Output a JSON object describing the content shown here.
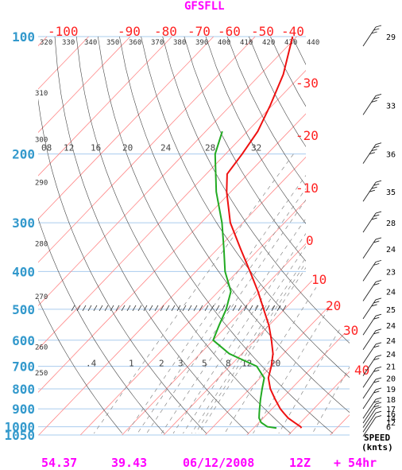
{
  "title": "GFSFLL",
  "footer": {
    "lat": "54.37",
    "lon": "39.43",
    "date": "06/12/2008",
    "hour": "12Z",
    "forecast": "+ 54hr"
  },
  "colors": {
    "temperature": "#ee1111",
    "dewpoint": "#22aa22",
    "isobar": "#aaccee",
    "isotherm": "#ff8888",
    "dry_adiabat": "#444444",
    "pressure_label": "#3399cc",
    "title": "#ff00ff"
  },
  "speed_header": [
    "SPEED",
    "(knts)"
  ],
  "chart_data": {
    "type": "skew-t",
    "pressure_levels": [
      100,
      200,
      300,
      400,
      500,
      600,
      700,
      800,
      900,
      1000,
      1050
    ],
    "pressure_labels": [
      "100",
      "200",
      "300",
      "400",
      "500",
      "600",
      "700",
      "800",
      "900",
      "1000",
      "1050"
    ],
    "isotherm_labels": [
      "-100",
      "-90",
      "-80",
      "-70",
      "-60",
      "-50",
      "-40",
      "-30",
      "-20",
      "-10",
      "0",
      "10",
      "20",
      "30",
      "40"
    ],
    "isotherm_values": [
      -100,
      -90,
      -80,
      -70,
      -60,
      -50,
      -40,
      -30,
      -20,
      -10,
      0,
      10,
      20,
      30,
      40
    ],
    "theta_labels_top": [
      "320",
      "330",
      "340",
      "350",
      "360",
      "370",
      "380",
      "390",
      "400",
      "410",
      "420",
      "430",
      "440"
    ],
    "theta_values_top": [
      320,
      330,
      340,
      350,
      360,
      370,
      380,
      390,
      400,
      410,
      420,
      430,
      440
    ],
    "theta_labels_left": [
      {
        "text": "310",
        "p": 143
      },
      {
        "text": "300",
        "p": 188
      },
      {
        "text": "290",
        "p": 242
      },
      {
        "text": "280",
        "p": 348
      },
      {
        "text": "270",
        "p": 475
      },
      {
        "text": "260",
        "p": 640
      },
      {
        "text": "250",
        "p": 745
      }
    ],
    "mixing_ratio_top_labels": [
      "08",
      "12",
      "16",
      "20",
      "24",
      "28",
      "32"
    ],
    "mixing_ratio_top_values": [
      0.8,
      1.2,
      1.6,
      2.0,
      2.4,
      2.8,
      3.2
    ],
    "mixing_ratio_bottom_labels": [
      ".4",
      "1",
      "2",
      "3",
      "5",
      "8",
      "12",
      "20"
    ],
    "mixing_ratio_bottom_values": [
      0.4,
      1,
      2,
      3,
      5,
      8,
      12,
      20
    ],
    "temperature_profile": [
      {
        "p": 1008,
        "t": 21.5
      },
      {
        "p": 1000,
        "t": 21.0
      },
      {
        "p": 975,
        "t": 18.5
      },
      {
        "p": 950,
        "t": 16.0
      },
      {
        "p": 925,
        "t": 14.0
      },
      {
        "p": 900,
        "t": 12.0
      },
      {
        "p": 850,
        "t": 8.5
      },
      {
        "p": 800,
        "t": 5.0
      },
      {
        "p": 750,
        "t": 2.0
      },
      {
        "p": 700,
        "t": 0.0
      },
      {
        "p": 650,
        "t": -2.5
      },
      {
        "p": 600,
        "t": -6.0
      },
      {
        "p": 550,
        "t": -10.0
      },
      {
        "p": 500,
        "t": -15.0
      },
      {
        "p": 450,
        "t": -20.5
      },
      {
        "p": 400,
        "t": -27.0
      },
      {
        "p": 350,
        "t": -34.5
      },
      {
        "p": 300,
        "t": -43.0
      },
      {
        "p": 250,
        "t": -51.0
      },
      {
        "p": 225,
        "t": -55.0
      },
      {
        "p": 200,
        "t": -56.0
      },
      {
        "p": 175,
        "t": -57.5
      },
      {
        "p": 150,
        "t": -60.5
      },
      {
        "p": 125,
        "t": -64.5
      },
      {
        "p": 100,
        "t": -71.0
      }
    ],
    "dewpoint_profile": [
      {
        "p": 1008,
        "t": 15.5
      },
      {
        "p": 1000,
        "t": 13.0
      },
      {
        "p": 975,
        "t": 10.5
      },
      {
        "p": 950,
        "t": 9.0
      },
      {
        "p": 925,
        "t": 8.0
      },
      {
        "p": 900,
        "t": 7.0
      },
      {
        "p": 850,
        "t": 5.0
      },
      {
        "p": 800,
        "t": 3.0
      },
      {
        "p": 750,
        "t": 1.0
      },
      {
        "p": 700,
        "t": -3.5
      },
      {
        "p": 650,
        "t": -13.0
      },
      {
        "p": 600,
        "t": -20.0
      },
      {
        "p": 550,
        "t": -22.0
      },
      {
        "p": 500,
        "t": -24.0
      },
      {
        "p": 450,
        "t": -27.0
      },
      {
        "p": 400,
        "t": -33.0
      },
      {
        "p": 350,
        "t": -38.5
      },
      {
        "p": 300,
        "t": -45.0
      },
      {
        "p": 250,
        "t": -53.5
      },
      {
        "p": 200,
        "t": -62.5
      },
      {
        "p": 175,
        "t": -66.0
      }
    ],
    "wind_speeds": [
      {
        "p": 100,
        "speed": "29"
      },
      {
        "p": 150,
        "speed": "33"
      },
      {
        "p": 200,
        "speed": "36"
      },
      {
        "p": 250,
        "speed": "35"
      },
      {
        "p": 300,
        "speed": "28"
      },
      {
        "p": 350,
        "speed": "24"
      },
      {
        "p": 400,
        "speed": "23"
      },
      {
        "p": 450,
        "speed": "24"
      },
      {
        "p": 500,
        "speed": "25"
      },
      {
        "p": 550,
        "speed": "24"
      },
      {
        "p": 600,
        "speed": "24"
      },
      {
        "p": 650,
        "speed": "24"
      },
      {
        "p": 700,
        "speed": "21"
      },
      {
        "p": 750,
        "speed": "20"
      },
      {
        "p": 800,
        "speed": "19"
      },
      {
        "p": 850,
        "speed": "18"
      },
      {
        "p": 900,
        "speed": "17"
      },
      {
        "p": 925,
        "speed": "16"
      },
      {
        "p": 950,
        "speed": "14"
      },
      {
        "p": 975,
        "speed": "12"
      },
      {
        "p": 1000,
        "speed": "6"
      }
    ]
  }
}
